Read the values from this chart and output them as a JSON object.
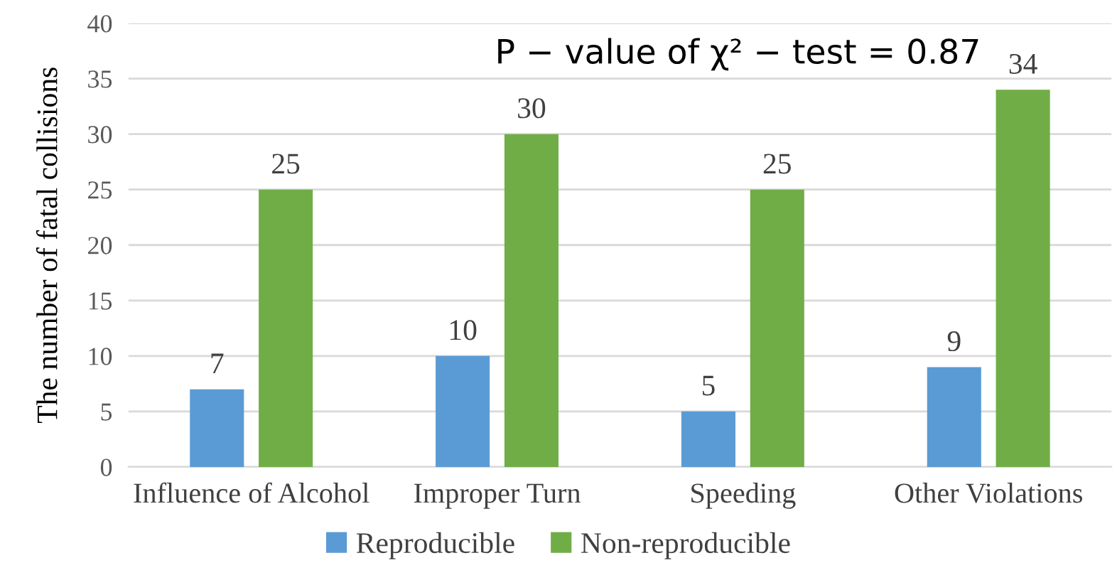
{
  "chart_data": {
    "type": "bar",
    "ylabel": "The number of fatal collisions",
    "categories": [
      "Influence of Alcohol",
      "Improper Turn",
      "Speeding",
      "Other Violations"
    ],
    "series": [
      {
        "name": "Reproducible",
        "color": "#5b9bd5",
        "values": [
          7,
          10,
          5,
          9
        ]
      },
      {
        "name": "Non-reproducible",
        "color": "#70ad47",
        "values": [
          25,
          30,
          25,
          34
        ]
      }
    ],
    "ylim": [
      0,
      40
    ],
    "yticks": [
      0,
      5,
      10,
      15,
      20,
      25,
      30,
      35,
      40
    ],
    "grid": "y",
    "legend": "bottom",
    "data_labels": true,
    "annotations": [
      "P − value of χ² − test = 0.87"
    ]
  }
}
